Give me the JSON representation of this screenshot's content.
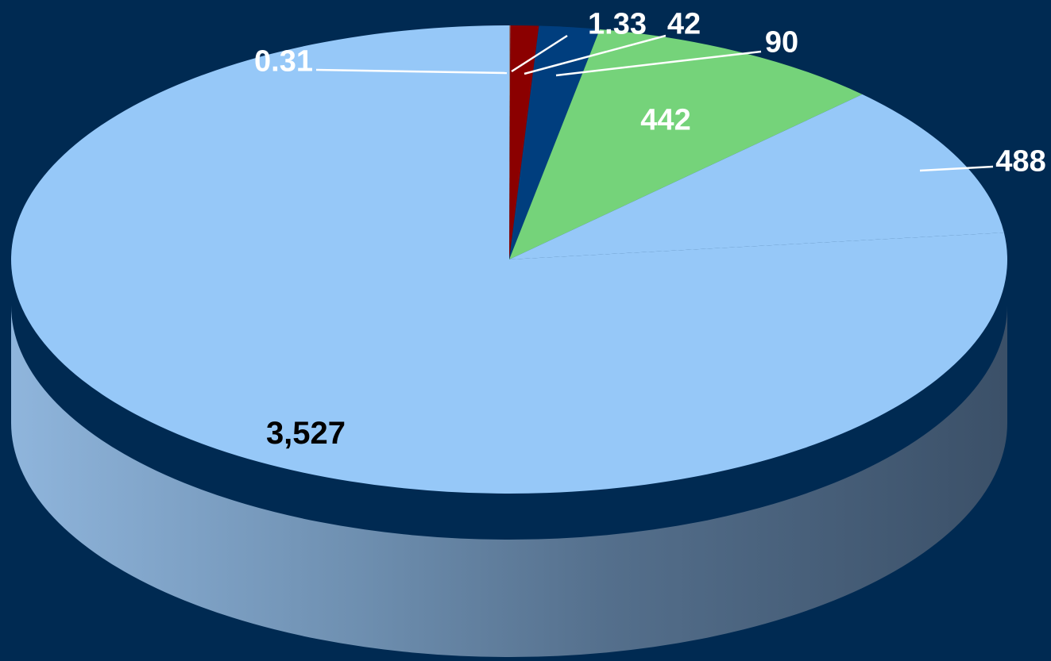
{
  "page": {
    "background": "#002a52",
    "leader_line_color": "#ffffff"
  },
  "chart_data": {
    "type": "pie",
    "title": "",
    "three_d": true,
    "slices": [
      {
        "label": "0.31",
        "value": 0.31,
        "color": "#c00000"
      },
      {
        "label": "1.33",
        "value": 1.33,
        "color": "#a6a6a6"
      },
      {
        "label": "42",
        "value": 42,
        "color": "#8b0000"
      },
      {
        "label": "90",
        "value": 90,
        "color": "#003e7e"
      },
      {
        "label": "442",
        "value": 442,
        "color": "#75d37a"
      },
      {
        "label": "488",
        "value": 488,
        "color": "#96c8f8"
      },
      {
        "label": "3,527",
        "value": 3527,
        "color": "#96c8f8"
      }
    ],
    "data_labels": [
      {
        "id": "label-0-31",
        "text": "0.31",
        "color": "#ffffff"
      },
      {
        "id": "label-1-33",
        "text": "1.33",
        "color": "#ffffff"
      },
      {
        "id": "label-42",
        "text": "42",
        "color": "#ffffff"
      },
      {
        "id": "label-90",
        "text": "90",
        "color": "#ffffff"
      },
      {
        "id": "label-442",
        "text": "442",
        "color": "#ffffff"
      },
      {
        "id": "label-488",
        "text": "488",
        "color": "#ffffff"
      },
      {
        "id": "label-3527",
        "text": "3,527",
        "color": "#000000"
      }
    ]
  }
}
